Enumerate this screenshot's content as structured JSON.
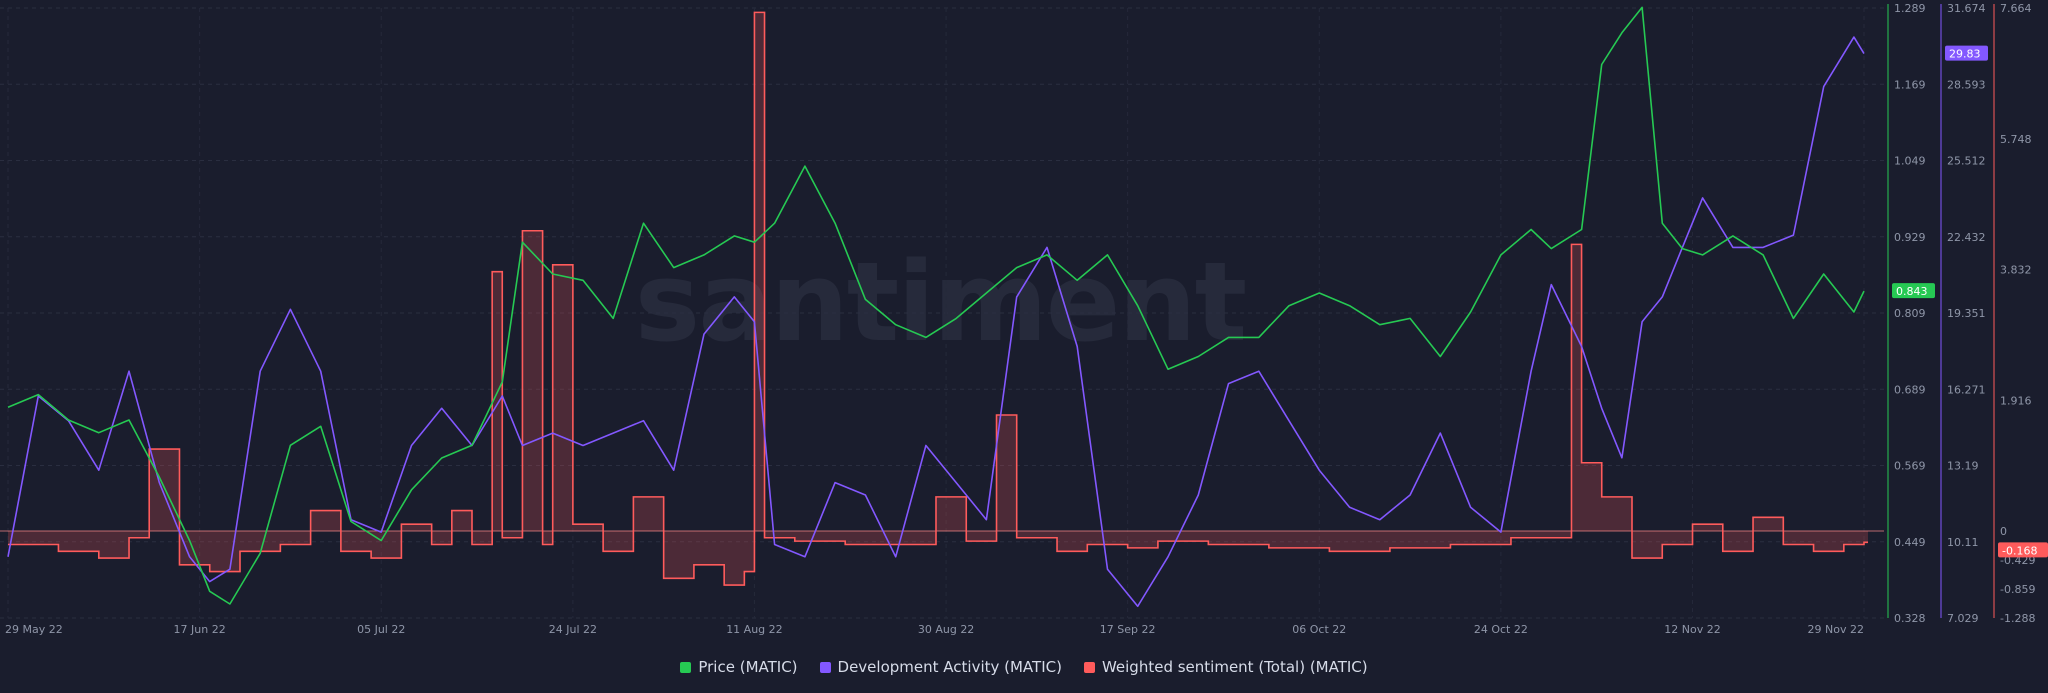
{
  "watermark": "santiment",
  "legend": [
    {
      "label": "Price (MATIC)",
      "color": "#26c953"
    },
    {
      "label": "Development Activity (MATIC)",
      "color": "#8358ff"
    },
    {
      "label": "Weighted sentiment (Total) (MATIC)",
      "color": "#ff5b5b"
    }
  ],
  "chart_data": {
    "type": "line",
    "x_axis": {
      "range": [
        "2022-05-29",
        "2022-11-29"
      ],
      "ticks": [
        "29 May 22",
        "17 Jun 22",
        "05 Jul 22",
        "24 Jul 22",
        "11 Aug 22",
        "30 Aug 22",
        "17 Sep 22",
        "06 Oct 22",
        "24 Oct 22",
        "12 Nov 22",
        "29 Nov 22"
      ]
    },
    "axes": {
      "price": {
        "ticks": [
          "1.289",
          "1.169",
          "1.049",
          "0.929",
          "0.809",
          "0.689",
          "0.569",
          "0.449",
          "0.328"
        ],
        "range": [
          0.328,
          1.289
        ],
        "color": "#26c953"
      },
      "dev": {
        "ticks": [
          "31.674",
          "28.593",
          "25.512",
          "22.432",
          "19.351",
          "16.271",
          "13.19",
          "10.11",
          "7.029"
        ],
        "range": [
          7.029,
          31.674
        ],
        "color": "#8358ff"
      },
      "sentiment": {
        "ticks": [
          "7.664",
          "5.748",
          "3.832",
          "1.916",
          "0",
          "-0.429",
          "-0.859",
          "-1.288"
        ],
        "range": [
          -1.288,
          7.664
        ],
        "color": "#ff5b5b"
      }
    },
    "current_values": {
      "price": "0.843",
      "dev": "29.83",
      "sentiment": "-0.168"
    },
    "series": [
      {
        "name": "Price (MATIC)",
        "axis": "price",
        "color": "#26c953",
        "x": [
          "2022-05-29",
          "2022-06-01",
          "2022-06-04",
          "2022-06-07",
          "2022-06-10",
          "2022-06-13",
          "2022-06-16",
          "2022-06-18",
          "2022-06-20",
          "2022-06-23",
          "2022-06-26",
          "2022-06-29",
          "2022-07-02",
          "2022-07-05",
          "2022-07-08",
          "2022-07-11",
          "2022-07-14",
          "2022-07-17",
          "2022-07-19",
          "2022-07-22",
          "2022-07-25",
          "2022-07-28",
          "2022-07-31",
          "2022-08-03",
          "2022-08-06",
          "2022-08-09",
          "2022-08-11",
          "2022-08-13",
          "2022-08-16",
          "2022-08-19",
          "2022-08-22",
          "2022-08-25",
          "2022-08-28",
          "2022-08-31",
          "2022-09-03",
          "2022-09-06",
          "2022-09-09",
          "2022-09-12",
          "2022-09-15",
          "2022-09-18",
          "2022-09-21",
          "2022-09-24",
          "2022-09-27",
          "2022-09-30",
          "2022-10-03",
          "2022-10-06",
          "2022-10-09",
          "2022-10-12",
          "2022-10-15",
          "2022-10-18",
          "2022-10-21",
          "2022-10-24",
          "2022-10-27",
          "2022-10-29",
          "2022-11-01",
          "2022-11-03",
          "2022-11-05",
          "2022-11-07",
          "2022-11-09",
          "2022-11-11",
          "2022-11-13",
          "2022-11-16",
          "2022-11-19",
          "2022-11-22",
          "2022-11-25",
          "2022-11-28",
          "2022-11-29"
        ],
        "values": [
          0.66,
          0.68,
          0.64,
          0.62,
          0.64,
          0.55,
          0.45,
          0.37,
          0.35,
          0.43,
          0.6,
          0.63,
          0.48,
          0.45,
          0.53,
          0.58,
          0.6,
          0.7,
          0.92,
          0.87,
          0.86,
          0.8,
          0.95,
          0.88,
          0.9,
          0.93,
          0.92,
          0.95,
          1.04,
          0.95,
          0.83,
          0.79,
          0.77,
          0.8,
          0.84,
          0.88,
          0.9,
          0.86,
          0.9,
          0.82,
          0.72,
          0.74,
          0.77,
          0.77,
          0.82,
          0.84,
          0.82,
          0.79,
          0.8,
          0.74,
          0.81,
          0.9,
          0.94,
          0.91,
          0.94,
          1.2,
          1.25,
          1.29,
          0.95,
          0.91,
          0.9,
          0.93,
          0.9,
          0.8,
          0.87,
          0.81,
          0.843
        ]
      },
      {
        "name": "Development Activity (MATIC)",
        "axis": "dev",
        "color": "#8358ff",
        "x": [
          "2022-05-29",
          "2022-06-01",
          "2022-06-04",
          "2022-06-07",
          "2022-06-10",
          "2022-06-13",
          "2022-06-16",
          "2022-06-18",
          "2022-06-20",
          "2022-06-23",
          "2022-06-26",
          "2022-06-29",
          "2022-07-02",
          "2022-07-05",
          "2022-07-08",
          "2022-07-11",
          "2022-07-14",
          "2022-07-17",
          "2022-07-19",
          "2022-07-22",
          "2022-07-25",
          "2022-07-28",
          "2022-07-31",
          "2022-08-03",
          "2022-08-06",
          "2022-08-09",
          "2022-08-11",
          "2022-08-13",
          "2022-08-16",
          "2022-08-19",
          "2022-08-22",
          "2022-08-25",
          "2022-08-28",
          "2022-08-31",
          "2022-09-03",
          "2022-09-06",
          "2022-09-09",
          "2022-09-12",
          "2022-09-15",
          "2022-09-18",
          "2022-09-21",
          "2022-09-24",
          "2022-09-27",
          "2022-09-30",
          "2022-10-03",
          "2022-10-06",
          "2022-10-09",
          "2022-10-12",
          "2022-10-15",
          "2022-10-18",
          "2022-10-21",
          "2022-10-24",
          "2022-10-27",
          "2022-10-29",
          "2022-11-01",
          "2022-11-03",
          "2022-11-05",
          "2022-11-07",
          "2022-11-09",
          "2022-11-11",
          "2022-11-13",
          "2022-11-16",
          "2022-11-19",
          "2022-11-22",
          "2022-11-25",
          "2022-11-28",
          "2022-11-29"
        ],
        "values": [
          9.5,
          16.0,
          15.0,
          13.0,
          17.0,
          12.5,
          9.5,
          8.5,
          9.0,
          17.0,
          19.5,
          17.0,
          11.0,
          10.5,
          14.0,
          15.5,
          14.0,
          16.0,
          14.0,
          14.5,
          14.0,
          14.5,
          15.0,
          13.0,
          18.5,
          20.0,
          19.0,
          10.0,
          9.5,
          12.5,
          12.0,
          9.5,
          14.0,
          12.5,
          11.0,
          20.0,
          22.0,
          18.0,
          9.0,
          7.5,
          9.5,
          12.0,
          16.5,
          17.0,
          15.0,
          13.0,
          11.5,
          11.0,
          12.0,
          14.5,
          11.5,
          10.5,
          17.0,
          20.5,
          18.0,
          15.5,
          13.5,
          19.0,
          20.0,
          22.0,
          24.0,
          22.0,
          22.0,
          22.5,
          28.5,
          30.5,
          29.83
        ]
      },
      {
        "name": "Weighted sentiment (Total) (MATIC)",
        "axis": "sentiment",
        "color": "#ff5b5b",
        "x": [
          "2022-05-29",
          "2022-06-03",
          "2022-06-07",
          "2022-06-10",
          "2022-06-12",
          "2022-06-15",
          "2022-06-18",
          "2022-06-21",
          "2022-06-25",
          "2022-06-28",
          "2022-07-01",
          "2022-07-04",
          "2022-07-07",
          "2022-07-10",
          "2022-07-12",
          "2022-07-14",
          "2022-07-16",
          "2022-07-17",
          "2022-07-19",
          "2022-07-21",
          "2022-07-22",
          "2022-07-24",
          "2022-07-27",
          "2022-07-30",
          "2022-08-02",
          "2022-08-05",
          "2022-08-08",
          "2022-08-10",
          "2022-08-11",
          "2022-08-12",
          "2022-08-15",
          "2022-08-20",
          "2022-08-25",
          "2022-08-29",
          "2022-09-01",
          "2022-09-04",
          "2022-09-06",
          "2022-09-10",
          "2022-09-13",
          "2022-09-17",
          "2022-09-20",
          "2022-09-25",
          "2022-10-01",
          "2022-10-07",
          "2022-10-13",
          "2022-10-19",
          "2022-10-25",
          "2022-10-30",
          "2022-10-31",
          "2022-11-01",
          "2022-11-03",
          "2022-11-06",
          "2022-11-09",
          "2022-11-12",
          "2022-11-15",
          "2022-11-18",
          "2022-11-21",
          "2022-11-24",
          "2022-11-27",
          "2022-11-29"
        ],
        "values": [
          -0.2,
          -0.3,
          -0.4,
          -0.1,
          1.2,
          -0.5,
          -0.6,
          -0.3,
          -0.2,
          0.3,
          -0.3,
          -0.4,
          0.1,
          -0.2,
          0.3,
          -0.2,
          3.8,
          -0.1,
          4.4,
          -0.2,
          3.9,
          0.1,
          -0.3,
          0.5,
          -0.7,
          -0.5,
          -0.8,
          -0.6,
          7.6,
          -0.1,
          -0.15,
          -0.2,
          -0.2,
          0.5,
          -0.15,
          1.7,
          -0.1,
          -0.3,
          -0.2,
          -0.25,
          -0.15,
          -0.2,
          -0.25,
          -0.3,
          -0.25,
          -0.2,
          -0.1,
          -0.1,
          4.2,
          1.0,
          0.5,
          -0.4,
          -0.2,
          0.1,
          -0.3,
          0.2,
          -0.2,
          -0.3,
          -0.2,
          -0.168
        ]
      }
    ]
  }
}
